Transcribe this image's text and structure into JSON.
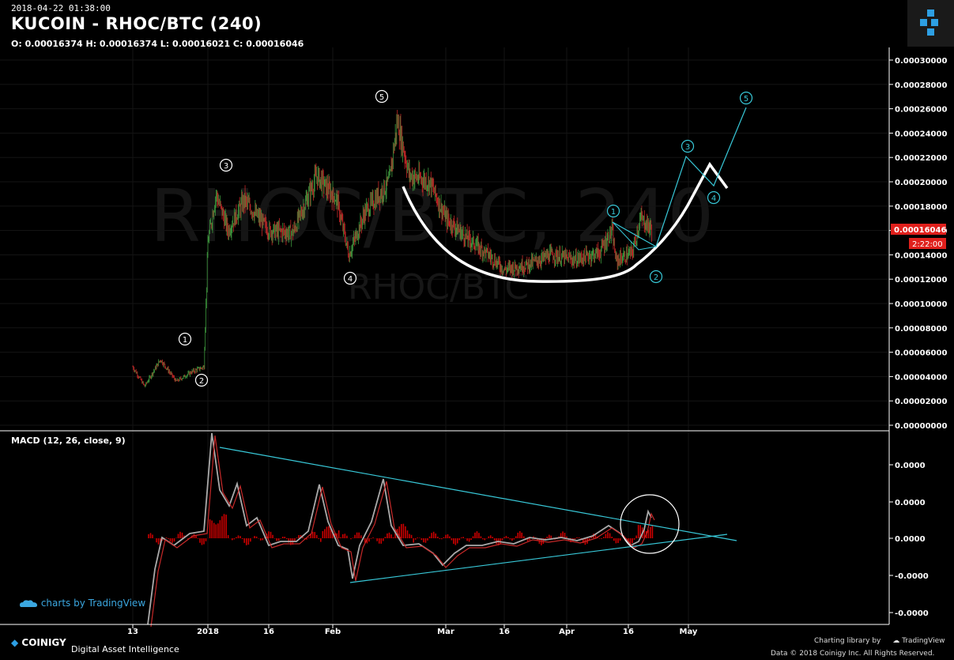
{
  "header": {
    "date": "2018-04-22 01:38:00",
    "title": "KUCOIN - RHOC/BTC (240)",
    "ohlc": "O: 0.00016374 H: 0.00016374 L: 0.00016021 C: 0.00016046"
  },
  "watermark": {
    "big": "RHOC/BTC, 240",
    "small": "RHOC/BTC"
  },
  "macd_label": "MACD (12, 26, close, 9)",
  "branding": {
    "tradingview": "charts by TradingView",
    "coinigy": "COINIGY",
    "tagline": "Digital Asset Intelligence",
    "charting": "Charting library by",
    "charting_brand": "TradingView",
    "copyright": "Data © 2018  Coinigy Inc. All Rights Reserved."
  },
  "colors": {
    "up": "#3f9b3f",
    "down": "#c62828",
    "cyan": "#38c8d8",
    "price_tag": "#e0201c",
    "background": "#000000"
  },
  "chart_data": [
    {
      "type": "candlestick",
      "title": "KUCOIN - RHOC/BTC (240)",
      "x_ticks": [
        "13",
        "2018",
        "16",
        "Feb",
        "Mar",
        "16",
        "Apr",
        "16",
        "May"
      ],
      "y_ticks": [
        "0.00030000",
        "0.00028000",
        "0.00026000",
        "0.00024000",
        "0.00022000",
        "0.00020000",
        "0.00018000",
        "0.00016000",
        "0.00014000",
        "0.00012000",
        "0.00010000",
        "0.00008000",
        "0.00006000",
        "0.00004000",
        "0.00002000",
        "0.00000000"
      ],
      "ylim": [
        0,
        0.0003
      ],
      "last_price": "0.00016046",
      "countdown": "2:22:00",
      "price_path": [
        {
          "date": "2017-12-13",
          "value": 4.8e-05
        },
        {
          "date": "2017-12-16",
          "value": 3.2e-05
        },
        {
          "date": "2017-12-20",
          "value": 5.4e-05
        },
        {
          "date": "2017-12-24",
          "value": 3.6e-05
        },
        {
          "date": "2017-12-28",
          "value": 4.4e-05
        },
        {
          "date": "2017-12-31",
          "value": 4.8e-05
        },
        {
          "date": "2018-01-01",
          "value": 0.00015
        },
        {
          "date": "2018-01-03",
          "value": 0.00019
        },
        {
          "date": "2018-01-06",
          "value": 0.00016
        },
        {
          "date": "2018-01-10",
          "value": 0.000185
        },
        {
          "date": "2018-01-16",
          "value": 0.00016
        },
        {
          "date": "2018-01-22",
          "value": 0.000158
        },
        {
          "date": "2018-01-28",
          "value": 0.000205
        },
        {
          "date": "2018-02-02",
          "value": 0.000185
        },
        {
          "date": "2018-02-05",
          "value": 0.00014
        },
        {
          "date": "2018-02-09",
          "value": 0.000175
        },
        {
          "date": "2018-02-15",
          "value": 0.0002
        },
        {
          "date": "2018-02-17",
          "value": 0.00025
        },
        {
          "date": "2018-02-20",
          "value": 0.000205
        },
        {
          "date": "2018-02-25",
          "value": 0.0002
        },
        {
          "date": "2018-03-01",
          "value": 0.00017
        },
        {
          "date": "2018-03-06",
          "value": 0.000155
        },
        {
          "date": "2018-03-12",
          "value": 0.00014
        },
        {
          "date": "2018-03-16",
          "value": 0.000128
        },
        {
          "date": "2018-03-22",
          "value": 0.000132
        },
        {
          "date": "2018-03-28",
          "value": 0.00014
        },
        {
          "date": "2018-04-03",
          "value": 0.000136
        },
        {
          "date": "2018-04-09",
          "value": 0.000142
        },
        {
          "date": "2018-04-12",
          "value": 0.00016
        },
        {
          "date": "2018-04-13",
          "value": 0.000135
        },
        {
          "date": "2018-04-17",
          "value": 0.000142
        },
        {
          "date": "2018-04-19",
          "value": 0.00017
        },
        {
          "date": "2018-04-22",
          "value": 0.00016046
        }
      ],
      "annotations": {
        "wave_labels_white": [
          "1",
          "2",
          "3",
          "4",
          "5"
        ],
        "wave_labels_cyan": [
          "1",
          "2",
          "3",
          "4",
          "5"
        ]
      }
    },
    {
      "type": "line",
      "title": "MACD (12, 26, close, 9)",
      "y_ticks": [
        "0.0000",
        "0.0000",
        "0.0000",
        "-0.0000",
        "-0.0000"
      ]
    }
  ]
}
